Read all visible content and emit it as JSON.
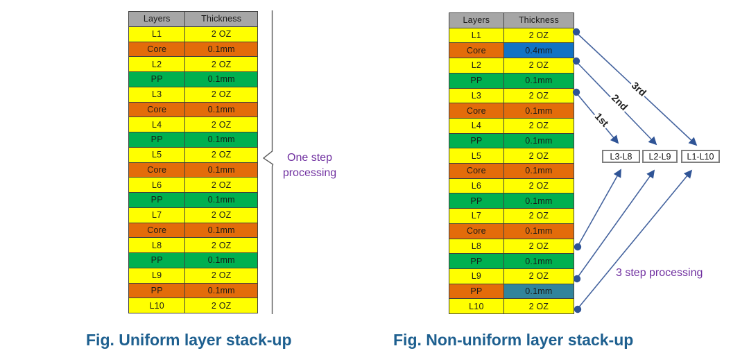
{
  "colors": {
    "yellow": "#FFFF00",
    "orange": "#E36C0A",
    "green": "#00B050",
    "gray": "#A6A6A6",
    "blue": "#1273C4",
    "teal": "#31849B",
    "arrow": "#44639E",
    "dot": "#2F5496",
    "purple": "#7030A0",
    "caption": "#1D5F8F",
    "border": "#3F3F3F",
    "brace": "#595959",
    "boxBorder": "#7F7F7F"
  },
  "left_figure": {
    "caption": "Fig. Uniform layer stack-up",
    "annotation": "One step processing",
    "table": {
      "headers": [
        "Layers",
        "Thickness"
      ],
      "rows": [
        [
          "L1",
          "2 OZ",
          "yellow",
          "yellow"
        ],
        [
          "Core",
          "0.1mm",
          "orange",
          "orange"
        ],
        [
          "L2",
          "2 OZ",
          "yellow",
          "yellow"
        ],
        [
          "PP",
          "0.1mm",
          "green",
          "green"
        ],
        [
          "L3",
          "2 OZ",
          "yellow",
          "yellow"
        ],
        [
          "Core",
          "0.1mm",
          "orange",
          "orange"
        ],
        [
          "L4",
          "2 OZ",
          "yellow",
          "yellow"
        ],
        [
          "PP",
          "0.1mm",
          "green",
          "green"
        ],
        [
          "L5",
          "2 OZ",
          "yellow",
          "yellow"
        ],
        [
          "Core",
          "0.1mm",
          "orange",
          "orange"
        ],
        [
          "L6",
          "2 OZ",
          "yellow",
          "yellow"
        ],
        [
          "PP",
          "0.1mm",
          "green",
          "green"
        ],
        [
          "L7",
          "2 OZ",
          "yellow",
          "yellow"
        ],
        [
          "Core",
          "0.1mm",
          "orange",
          "orange"
        ],
        [
          "L8",
          "2 OZ",
          "yellow",
          "yellow"
        ],
        [
          "PP",
          "0.1mm",
          "green",
          "green"
        ],
        [
          "L9",
          "2 OZ",
          "yellow",
          "yellow"
        ],
        [
          "PP",
          "0.1mm",
          "orange",
          "orange"
        ],
        [
          "L10",
          "2 OZ",
          "yellow",
          "yellow"
        ]
      ]
    }
  },
  "right_figure": {
    "caption": "Fig. Non-uniform layer stack-up",
    "annotation": "3 step processing",
    "step_labels": [
      "1st",
      "2nd",
      "3rd"
    ],
    "boxes": [
      "L3-L8",
      "L2-L9",
      "L1-L10"
    ],
    "table": {
      "headers": [
        "Layers",
        "Thickness"
      ],
      "rows": [
        [
          "L1",
          "2 OZ",
          "yellow",
          "yellow"
        ],
        [
          "Core",
          "0.4mm",
          "orange",
          "blue"
        ],
        [
          "L2",
          "2 OZ",
          "yellow",
          "yellow"
        ],
        [
          "PP",
          "0.1mm",
          "green",
          "green"
        ],
        [
          "L3",
          "2 OZ",
          "yellow",
          "yellow"
        ],
        [
          "Core",
          "0.1mm",
          "orange",
          "orange"
        ],
        [
          "L4",
          "2 OZ",
          "yellow",
          "yellow"
        ],
        [
          "PP",
          "0.1mm",
          "green",
          "green"
        ],
        [
          "L5",
          "2 OZ",
          "yellow",
          "yellow"
        ],
        [
          "Core",
          "0.1mm",
          "orange",
          "orange"
        ],
        [
          "L6",
          "2 OZ",
          "yellow",
          "yellow"
        ],
        [
          "PP",
          "0.1mm",
          "green",
          "green"
        ],
        [
          "L7",
          "2 OZ",
          "yellow",
          "yellow"
        ],
        [
          "Core",
          "0.1mm",
          "orange",
          "orange"
        ],
        [
          "L8",
          "2 OZ",
          "yellow",
          "yellow"
        ],
        [
          "PP",
          "0.1mm",
          "green",
          "green"
        ],
        [
          "L9",
          "2 OZ",
          "yellow",
          "yellow"
        ],
        [
          "PP",
          "0.1mm",
          "orange",
          "teal"
        ],
        [
          "L10",
          "2 OZ",
          "yellow",
          "yellow"
        ]
      ]
    }
  }
}
